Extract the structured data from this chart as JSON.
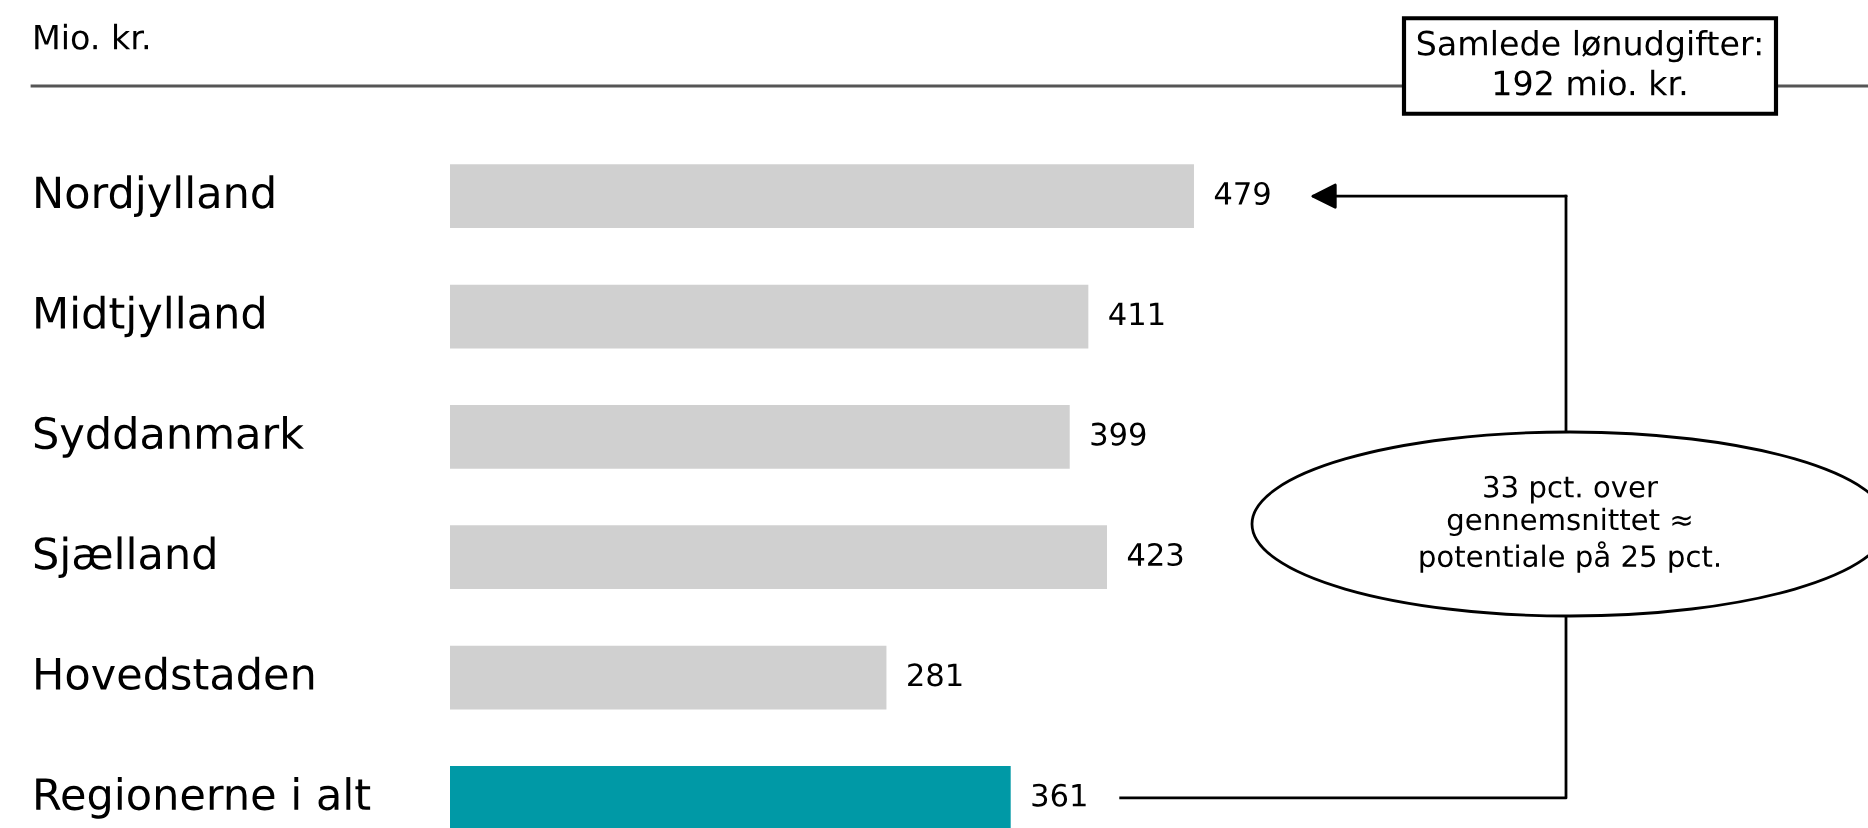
{
  "chart_data": {
    "type": "bar",
    "orientation": "horizontal",
    "subtitle": "Mio. kr.",
    "categories": [
      "Nordjylland",
      "Midtjylland",
      "Syddanmark",
      "Sjælland",
      "Hovedstaden",
      "Regionerne i alt"
    ],
    "values": [
      479,
      411,
      399,
      423,
      281,
      361
    ],
    "colors": [
      "#d0d0d0",
      "#d0d0d0",
      "#d0d0d0",
      "#d0d0d0",
      "#d0d0d0",
      "#0099a6"
    ],
    "data_labels": true,
    "annotations": [
      "Samlede lønudgifter:\n192 mio. kr.",
      "33 pct. over\ngennemsnittet ≈\npotentiale på 25 pct."
    ]
  }
}
